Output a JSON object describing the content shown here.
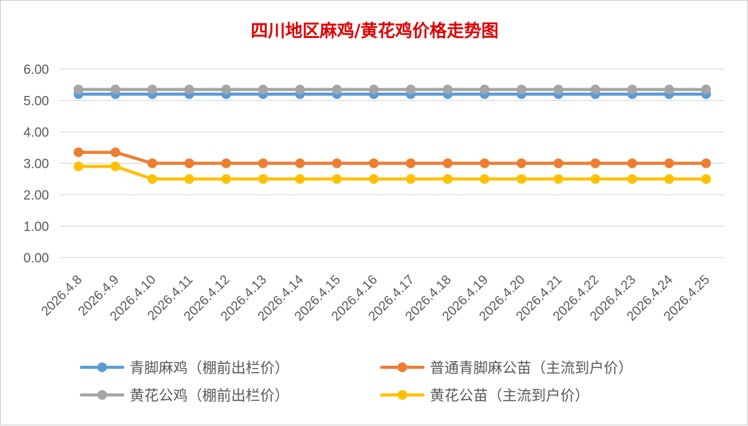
{
  "chart_data": {
    "type": "line",
    "title": "四川地区麻鸡/黄花鸡价格走势图",
    "xlabel": "",
    "ylabel": "",
    "categories": [
      "2026.4.8",
      "2026.4.9",
      "2026.4.10",
      "2026.4.11",
      "2026.4.12",
      "2026.4.13",
      "2026.4.14",
      "2026.4.15",
      "2026.4.16",
      "2026.4.17",
      "2026.4.18",
      "2026.4.19",
      "2026.4.20",
      "2026.4.21",
      "2026.4.22",
      "2026.4.23",
      "2026.4.24",
      "2026.4.25"
    ],
    "ylim": [
      0,
      6
    ],
    "yticks": [
      "0.00",
      "1.00",
      "2.00",
      "3.00",
      "4.00",
      "5.00",
      "6.00"
    ],
    "grid": true,
    "legend_position": "bottom",
    "series": [
      {
        "name": "青脚麻鸡（棚前出栏价）",
        "color": "#5b9bd5",
        "values": [
          5.2,
          5.2,
          5.2,
          5.2,
          5.2,
          5.2,
          5.2,
          5.2,
          5.2,
          5.2,
          5.2,
          5.2,
          5.2,
          5.2,
          5.2,
          5.2,
          5.2,
          5.2
        ]
      },
      {
        "name": "普通青脚麻公苗（主流到户价）",
        "color": "#ed7d31",
        "values": [
          3.35,
          3.35,
          3.0,
          3.0,
          3.0,
          3.0,
          3.0,
          3.0,
          3.0,
          3.0,
          3.0,
          3.0,
          3.0,
          3.0,
          3.0,
          3.0,
          3.0,
          3.0
        ]
      },
      {
        "name": "黄花公鸡（棚前出栏价）",
        "color": "#a5a5a5",
        "values": [
          5.35,
          5.35,
          5.35,
          5.35,
          5.35,
          5.35,
          5.35,
          5.35,
          5.35,
          5.35,
          5.35,
          5.35,
          5.35,
          5.35,
          5.35,
          5.35,
          5.35,
          5.35
        ]
      },
      {
        "name": "黄花公苗（主流到户价）",
        "color": "#ffc000",
        "values": [
          2.9,
          2.9,
          2.5,
          2.5,
          2.5,
          2.5,
          2.5,
          2.5,
          2.5,
          2.5,
          2.5,
          2.5,
          2.5,
          2.5,
          2.5,
          2.5,
          2.5,
          2.5
        ]
      }
    ],
    "draw_order": [
      0,
      1,
      2,
      3
    ]
  }
}
